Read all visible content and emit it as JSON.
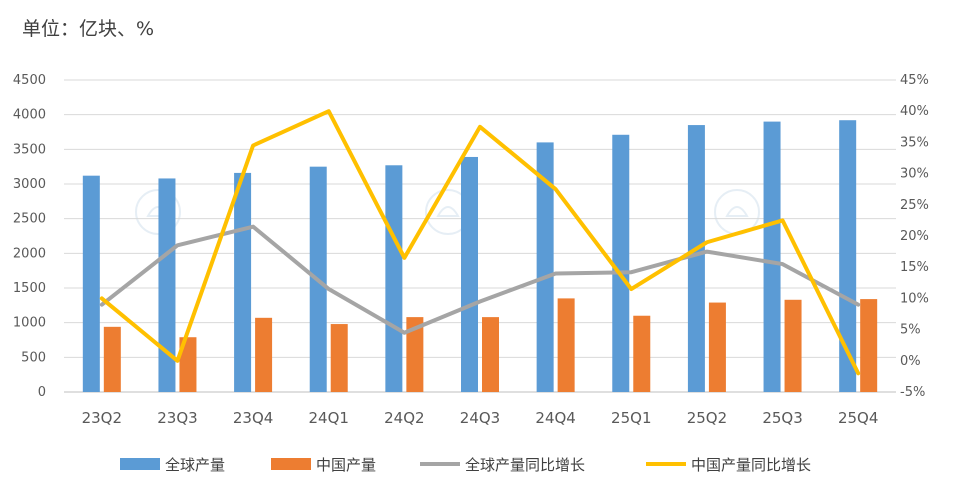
{
  "unit_text": "单位：亿块、%",
  "chart_data": {
    "type": "bar",
    "categories": [
      "23Q2",
      "23Q3",
      "23Q4",
      "24Q1",
      "24Q2",
      "24Q3",
      "24Q4",
      "25Q1",
      "25Q2",
      "25Q3",
      "25Q4"
    ],
    "ylim_left": [
      0,
      4500
    ],
    "yticks_left": [
      "0",
      "500",
      "1000",
      "1500",
      "2000",
      "2500",
      "3000",
      "3500",
      "4000",
      "4500"
    ],
    "ylim_right": [
      -5,
      45
    ],
    "yticks_right": [
      "-5%",
      "0%",
      "5%",
      "10%",
      "15%",
      "20%",
      "25%",
      "30%",
      "35%",
      "40%",
      "45%"
    ],
    "grid": true,
    "legend_position": "bottom",
    "series": [
      {
        "name": "全球产量",
        "kind": "bar",
        "axis": "left",
        "color": "#5B9BD5",
        "values": [
          3120,
          3080,
          3160,
          3250,
          3270,
          3390,
          3600,
          3710,
          3850,
          3900,
          3920
        ]
      },
      {
        "name": "中国产量",
        "kind": "bar",
        "axis": "left",
        "color": "#ED7D31",
        "values": [
          940,
          790,
          1070,
          980,
          1080,
          1080,
          1350,
          1100,
          1290,
          1330,
          1340
        ]
      },
      {
        "name": "全球产量同比增长",
        "kind": "line",
        "axis": "right",
        "color": "#A5A5A5",
        "values": [
          9,
          18.5,
          21.5,
          11.5,
          4.5,
          9.5,
          14,
          14.2,
          17.5,
          15.5,
          9
        ]
      },
      {
        "name": "中国产量同比增长",
        "kind": "line",
        "axis": "right",
        "color": "#FFC000",
        "values": [
          10,
          0,
          34.5,
          40,
          16.5,
          37.5,
          27.5,
          11.5,
          19,
          22.5,
          -2
        ]
      }
    ]
  }
}
